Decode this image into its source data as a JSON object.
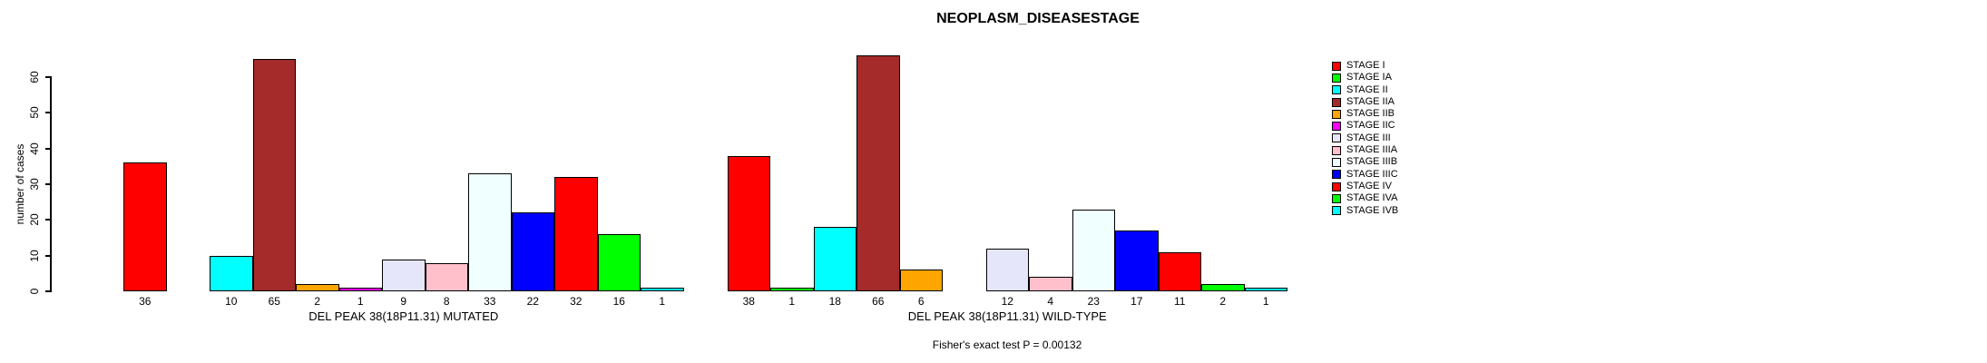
{
  "chart_data": {
    "type": "bar",
    "title": "NEOPLASM_DISEASESTAGE",
    "ylabel": "number of cases",
    "ylim": [
      0,
      60
    ],
    "yticks": [
      0,
      10,
      20,
      30,
      40,
      50,
      60
    ],
    "grid": false,
    "legend_position": "right",
    "categories": [
      "STAGE I",
      "STAGE IA",
      "STAGE II",
      "STAGE IIA",
      "STAGE IIB",
      "STAGE IIC",
      "STAGE III",
      "STAGE IIIA",
      "STAGE IIIB",
      "STAGE IIIC",
      "STAGE IV",
      "STAGE IVA",
      "STAGE IVB"
    ],
    "colors": [
      "#FF0000",
      "#00FF00",
      "#00FFFF",
      "#A52A2A",
      "#FFA500",
      "#FF00FF",
      "#E6E6FA",
      "#FFC0CB",
      "#F0FFFF",
      "#0000FF",
      "#FF0000",
      "#00FF00",
      "#00FFFF"
    ],
    "groups": [
      {
        "label": "DEL PEAK 38(18P11.31) MUTATED",
        "values": [
          36,
          0,
          10,
          65,
          2,
          1,
          9,
          8,
          33,
          22,
          32,
          16,
          1
        ]
      },
      {
        "label": "DEL PEAK 38(18P11.31) WILD-TYPE",
        "values": [
          38,
          1,
          18,
          66,
          6,
          0,
          12,
          4,
          23,
          17,
          11,
          2,
          1
        ]
      }
    ],
    "annotation": "Fisher's exact test P = 0.00132"
  }
}
